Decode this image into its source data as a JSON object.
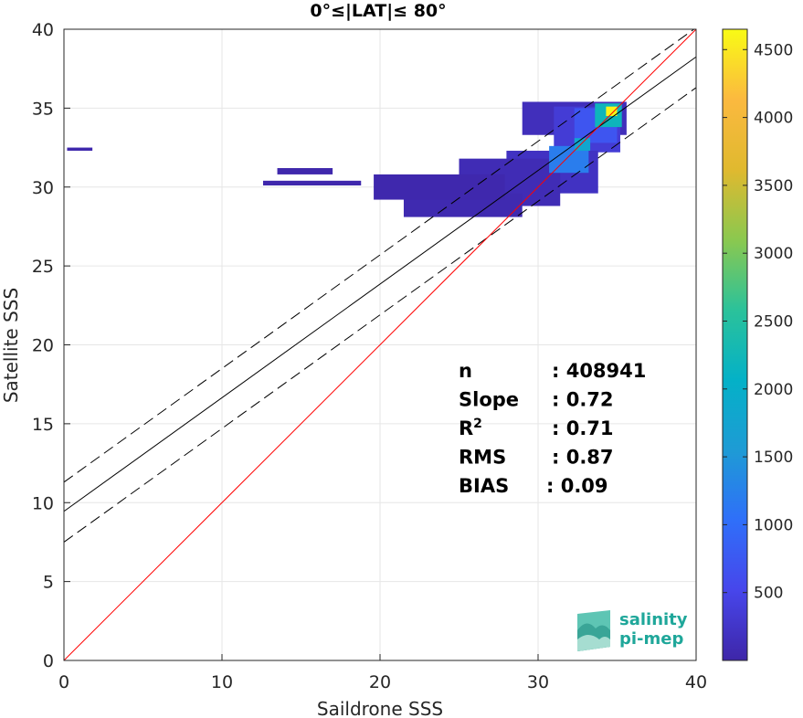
{
  "chart_data": {
    "type": "heatmap",
    "title": "0°≤|LAT|≤ 80°",
    "xlabel": "Saildrone SSS",
    "ylabel": "Satellite SSS",
    "xlim": [
      0,
      40
    ],
    "ylim": [
      0,
      40
    ],
    "xticks": [
      "0",
      "10",
      "20",
      "30",
      "40"
    ],
    "yticks": [
      "0",
      "5",
      "10",
      "15",
      "20",
      "25",
      "30",
      "35",
      "40"
    ],
    "grid": true,
    "colorbar": {
      "range": [
        0,
        4650
      ],
      "ticks": [
        "500",
        "1000",
        "1500",
        "2000",
        "2500",
        "3000",
        "3500",
        "4000",
        "4500"
      ],
      "colormap": [
        "#3e26a8",
        "#4746eb",
        "#2f6ff9",
        "#1e9bd5",
        "#04b1c7",
        "#2bc29a",
        "#8bc84f",
        "#e0b92f",
        "#fbb93f",
        "#f9fb15"
      ]
    },
    "lines": {
      "identity": {
        "slope": 1,
        "intercept": 0,
        "color": "#ff0000"
      },
      "fit": {
        "slope": 0.72,
        "intercept": 9.45,
        "color": "#000000"
      },
      "fit_upper": {
        "slope": 0.72,
        "intercept": 11.3,
        "style": "dashed"
      },
      "fit_lower": {
        "slope": 0.72,
        "intercept": 7.5,
        "style": "dashed"
      }
    },
    "density": [
      {
        "x": [
          29,
          35.6
        ],
        "y": [
          33.3,
          35.4
        ],
        "count": 150
      },
      {
        "x": [
          31,
          35.2
        ],
        "y": [
          32.2,
          35.1
        ],
        "count": 350
      },
      {
        "x": [
          32.3,
          35
        ],
        "y": [
          32.8,
          35
        ],
        "count": 700
      },
      {
        "x": [
          33.6,
          35.3
        ],
        "y": [
          33.8,
          35.3
        ],
        "count": 2200
      },
      {
        "x": [
          34.3,
          35
        ],
        "y": [
          34.5,
          35.1
        ],
        "count": 4600
      },
      {
        "x": [
          28,
          33.8
        ],
        "y": [
          29.6,
          32.3
        ],
        "count": 200
      },
      {
        "x": [
          25,
          31.4
        ],
        "y": [
          28.8,
          31.8
        ],
        "count": 100
      },
      {
        "x": [
          21.5,
          29
        ],
        "y": [
          28.1,
          29.6
        ],
        "count": 60
      },
      {
        "x": [
          19.6,
          27.9
        ],
        "y": [
          29.2,
          30.8
        ],
        "count": 40
      },
      {
        "x": [
          12.6,
          18.8
        ],
        "y": [
          30.1,
          30.4
        ],
        "count": 30
      },
      {
        "x": [
          13.5,
          17
        ],
        "y": [
          30.8,
          31.2
        ],
        "count": 30
      },
      {
        "x": [
          0.2,
          1.8
        ],
        "y": [
          32.3,
          32.5
        ],
        "count": 40
      },
      {
        "x": [
          30.7,
          33.2
        ],
        "y": [
          30.9,
          32.6
        ],
        "count": 1200
      },
      {
        "x": [
          32.3,
          33.3
        ],
        "y": [
          32.3,
          33.1
        ],
        "count": 1800
      }
    ],
    "stats": [
      {
        "label": "n",
        "value": ": 408941"
      },
      {
        "label": "Slope",
        "value": ": 0.72"
      },
      {
        "label": "R",
        "sup": "2",
        "value": ": 0.71"
      },
      {
        "label": "RMS",
        "value": ": 0.87"
      },
      {
        "label": "BIAS",
        "value": ": 0.09"
      }
    ]
  },
  "logo": {
    "line1": "salinity",
    "line2": "pi-mep"
  }
}
